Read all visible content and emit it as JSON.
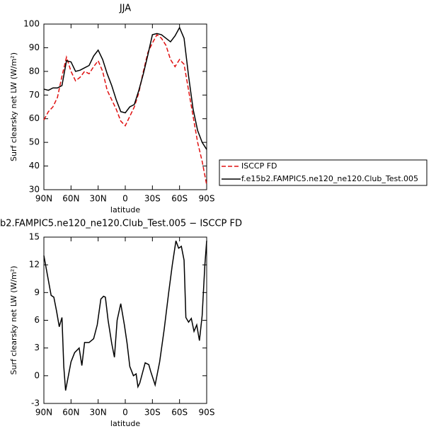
{
  "chart_data": [
    {
      "type": "line",
      "title": "JJA",
      "x_label": "latitude",
      "y_label": "Surf clearsky net LW (W/m²)",
      "x": [
        90,
        85,
        80,
        75,
        70,
        65,
        60,
        55,
        50,
        45,
        40,
        35,
        30,
        25,
        20,
        15,
        10,
        5,
        0,
        -5,
        -10,
        -15,
        -20,
        -25,
        -30,
        -35,
        -40,
        -45,
        -50,
        -55,
        -60,
        -65,
        -70,
        -75,
        -80,
        -85,
        -90
      ],
      "series": [
        {
          "name": "ISCCP FD",
          "color": "#e01010",
          "dashed": true,
          "values": [
            59.5,
            63,
            65,
            69,
            78,
            86,
            80,
            76,
            77.5,
            80,
            79,
            82,
            84.5,
            80,
            72,
            68,
            64,
            59,
            57,
            61,
            65,
            71,
            80,
            88,
            92,
            95.5,
            94,
            91,
            85,
            82,
            85,
            83,
            72,
            61,
            50,
            42,
            32
          ]
        },
        {
          "name": "f.e15b2.FAMPIC5.ne120_ne120.Club_Test.005",
          "color": "#000000",
          "dashed": false,
          "values": [
            72.5,
            72,
            73,
            73,
            74,
            84.5,
            84,
            80,
            80.5,
            81.5,
            82.5,
            86.5,
            89,
            85,
            79,
            74,
            68,
            63,
            62.5,
            65,
            66,
            72,
            79,
            87,
            95.5,
            96,
            95.5,
            94,
            92.5,
            95,
            98.5,
            94,
            78,
            64,
            55,
            50,
            47
          ]
        }
      ],
      "xlim": [
        90,
        -90
      ],
      "xticks": [
        {
          "value": 90,
          "label": "90N"
        },
        {
          "value": 60,
          "label": "60N"
        },
        {
          "value": 30,
          "label": "30N"
        },
        0,
        {
          "value": -30,
          "label": "30S"
        },
        {
          "value": -60,
          "label": "60S"
        },
        {
          "value": -90,
          "label": "90S"
        }
      ],
      "ylim": [
        30,
        100
      ],
      "yticks": [
        30,
        40,
        50,
        60,
        70,
        80,
        90,
        100
      ],
      "legend": "outside-right"
    },
    {
      "type": "line",
      "title": "b2.FAMPIC5.ne120_ne120.Club_Test.005 − ISCCP FD",
      "x_label": "latitude",
      "y_label": "Surf clearsky net LW (W/m²)",
      "x": [
        90,
        82,
        79,
        76,
        73,
        70,
        68,
        66,
        60,
        56,
        51,
        48,
        45,
        40,
        35,
        31,
        27,
        24,
        22,
        19,
        15,
        12,
        9,
        5,
        1,
        -2,
        -5,
        -9,
        -12,
        -14,
        -16,
        -22,
        -26,
        -28,
        -33,
        -38,
        -43,
        -48,
        -52,
        -56,
        -59,
        -62,
        -65,
        -67,
        -70,
        -73,
        -76,
        -79,
        -82,
        -85,
        -88,
        -90
      ],
      "series": [
        {
          "color": "#000000",
          "dashed": false,
          "values": [
            13,
            8.7,
            8.5,
            7,
            5.3,
            6.3,
            1,
            -1.6,
            1.5,
            2.5,
            3,
            1.1,
            3.6,
            3.6,
            4,
            5.5,
            8.3,
            8.6,
            8.5,
            6,
            3.5,
            2,
            6,
            7.8,
            5.5,
            3.5,
            1,
            0,
            0.2,
            -1.2,
            -0.8,
            1.4,
            1.2,
            0.5,
            -1,
            1.5,
            5,
            9,
            12,
            14.6,
            13.8,
            14,
            12.5,
            6.3,
            5.8,
            6.2,
            4.8,
            5.5,
            3.8,
            6.5,
            12,
            14.6
          ]
        }
      ],
      "xlim": [
        90,
        -90
      ],
      "xticks": [
        {
          "value": 90,
          "label": "90N"
        },
        {
          "value": 60,
          "label": "60N"
        },
        {
          "value": 30,
          "label": "30N"
        },
        0,
        {
          "value": -30,
          "label": "30S"
        },
        {
          "value": -60,
          "label": "60S"
        },
        {
          "value": -90,
          "label": "90S"
        }
      ],
      "ylim": [
        -3,
        15
      ],
      "yticks": [
        -3,
        0,
        3,
        6,
        9,
        12,
        15
      ]
    }
  ]
}
